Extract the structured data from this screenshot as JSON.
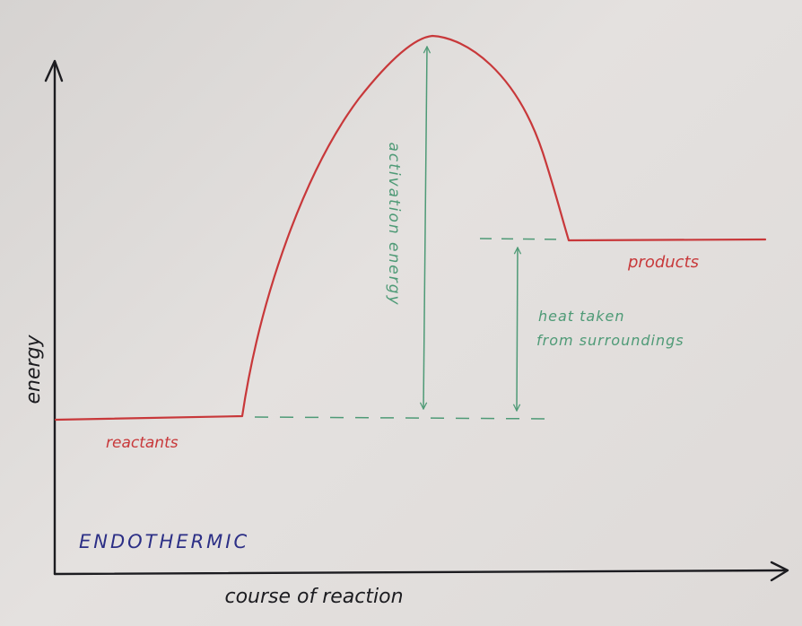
{
  "labels": {
    "y_axis": "energy",
    "x_axis": "course of reaction",
    "reactants": "reactants",
    "products": "products",
    "activation": "activation energy",
    "heat_line1": "heat taken",
    "heat_line2": "from surroundings",
    "title": "ENDOTHERMIC"
  },
  "colors": {
    "ink": "#1c1c20",
    "curve": "#c8383a",
    "annotation": "#4e9a76",
    "title": "#2c2f86"
  }
}
